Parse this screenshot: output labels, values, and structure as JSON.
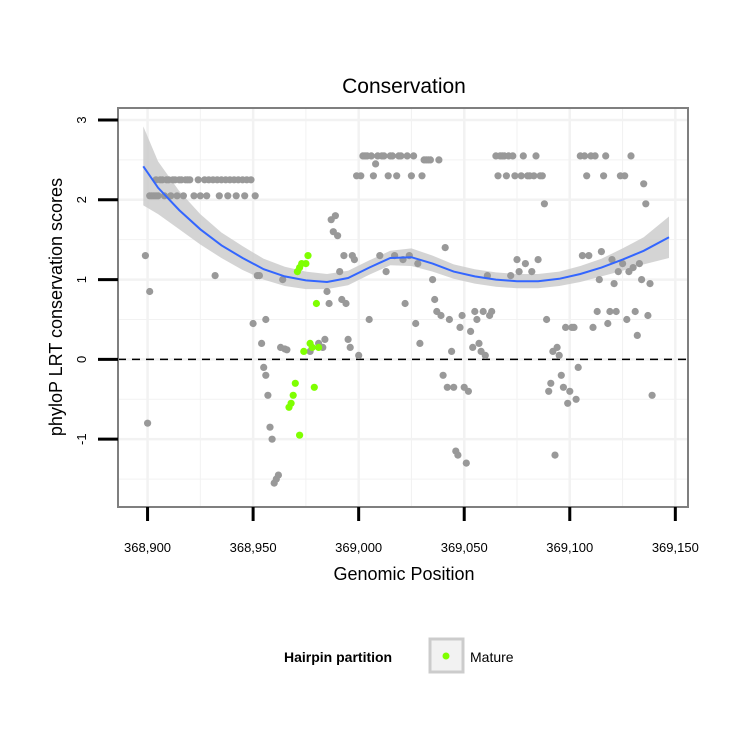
{
  "chart_data": {
    "type": "scatter",
    "title": "Conservation",
    "xlabel": "Genomic Position",
    "ylabel": "phyloP LRT conservation scores",
    "xlim": [
      368886,
      369156
    ],
    "ylim": [
      -1.85,
      3.15
    ],
    "x_ticks": [
      368900,
      368950,
      369000,
      369050,
      369100,
      369150
    ],
    "x_tick_labels": [
      "368,900",
      "368,950",
      "369,000",
      "369,050",
      "369,100",
      "369,150"
    ],
    "y_ticks": [
      -1,
      0,
      1,
      2,
      3
    ],
    "y_tick_labels": [
      "-1",
      "0",
      "1",
      "2",
      "3"
    ],
    "reference_line": {
      "y": 0,
      "style": "dashed"
    },
    "grid": true,
    "legend": {
      "title": "Hairpin partition",
      "entries": [
        {
          "label": "Mature",
          "color": "#7fff00"
        }
      ],
      "position": "bottom"
    },
    "colors": {
      "other_points": "#999999",
      "mature_points": "#7fff00",
      "smooth_line": "#3366ff",
      "confidence_band": "#cccccc",
      "panel_border": "#7f7f7f",
      "grid": "#f2f2f2"
    },
    "series": [
      {
        "name": "Other",
        "color": "#999999",
        "points": [
          [
            368899,
            1.3
          ],
          [
            368900,
            -0.8
          ],
          [
            368901,
            0.85
          ],
          [
            368901,
            2.05
          ],
          [
            368902,
            2.05
          ],
          [
            368903,
            2.05
          ],
          [
            368904,
            2.25
          ],
          [
            368904,
            2.05
          ],
          [
            368905,
            2.05
          ],
          [
            368906,
            2.25
          ],
          [
            368907,
            2.25
          ],
          [
            368908,
            2.05
          ],
          [
            368909,
            2.25
          ],
          [
            368910,
            2.25
          ],
          [
            368911,
            2.05
          ],
          [
            368912,
            2.25
          ],
          [
            368913,
            2.25
          ],
          [
            368914,
            2.05
          ],
          [
            368915,
            2.25
          ],
          [
            368916,
            2.25
          ],
          [
            368917,
            2.05
          ],
          [
            368918,
            2.25
          ],
          [
            368919,
            2.25
          ],
          [
            368920,
            2.25
          ],
          [
            368922,
            2.05
          ],
          [
            368924,
            2.25
          ],
          [
            368925,
            2.05
          ],
          [
            368927,
            2.25
          ],
          [
            368928,
            2.05
          ],
          [
            368929,
            2.25
          ],
          [
            368931,
            2.25
          ],
          [
            368932,
            1.05
          ],
          [
            368933,
            2.25
          ],
          [
            368934,
            2.05
          ],
          [
            368935,
            2.25
          ],
          [
            368937,
            2.25
          ],
          [
            368938,
            2.05
          ],
          [
            368939,
            2.25
          ],
          [
            368941,
            2.25
          ],
          [
            368942,
            2.05
          ],
          [
            368943,
            2.25
          ],
          [
            368945,
            2.25
          ],
          [
            368946,
            2.05
          ],
          [
            368947,
            2.25
          ],
          [
            368949,
            2.25
          ],
          [
            368950,
            0.45
          ],
          [
            368951,
            2.05
          ],
          [
            368952,
            1.05
          ],
          [
            368953,
            1.05
          ],
          [
            368954,
            0.2
          ],
          [
            368955,
            -0.1
          ],
          [
            368956,
            0.5
          ],
          [
            368956,
            -0.2
          ],
          [
            368957,
            -0.45
          ],
          [
            368958,
            -0.85
          ],
          [
            368959,
            -1.0
          ],
          [
            368960,
            -1.55
          ],
          [
            368961,
            -1.5
          ],
          [
            368962,
            -1.45
          ],
          [
            368963,
            0.15
          ],
          [
            368964,
            1.0
          ],
          [
            368965,
            0.13
          ],
          [
            368966,
            0.12
          ],
          [
            368977,
            0.1
          ],
          [
            368981,
            0.2
          ],
          [
            368983,
            0.15
          ],
          [
            368984,
            0.25
          ],
          [
            368985,
            0.85
          ],
          [
            368986,
            0.7
          ],
          [
            368987,
            1.75
          ],
          [
            368988,
            1.6
          ],
          [
            368989,
            1.8
          ],
          [
            368990,
            1.55
          ],
          [
            368991,
            1.1
          ],
          [
            368992,
            0.75
          ],
          [
            368993,
            1.3
          ],
          [
            368994,
            0.7
          ],
          [
            368995,
            0.25
          ],
          [
            368996,
            0.15
          ],
          [
            368997,
            1.3
          ],
          [
            368998,
            1.25
          ],
          [
            368999,
            2.3
          ],
          [
            369000,
            0.05
          ],
          [
            369001,
            2.3
          ],
          [
            369002,
            2.55
          ],
          [
            369003,
            2.55
          ],
          [
            369004,
            2.55
          ],
          [
            369005,
            0.5
          ],
          [
            369006,
            2.55
          ],
          [
            369007,
            2.3
          ],
          [
            369008,
            2.45
          ],
          [
            369009,
            2.55
          ],
          [
            369010,
            1.3
          ],
          [
            369011,
            2.55
          ],
          [
            369012,
            2.55
          ],
          [
            369013,
            1.1
          ],
          [
            369014,
            2.3
          ],
          [
            369015,
            2.55
          ],
          [
            369016,
            2.55
          ],
          [
            369017,
            1.3
          ],
          [
            369018,
            2.3
          ],
          [
            369019,
            2.55
          ],
          [
            369020,
            2.55
          ],
          [
            369021,
            1.25
          ],
          [
            369022,
            0.7
          ],
          [
            369023,
            2.55
          ],
          [
            369024,
            1.3
          ],
          [
            369025,
            2.3
          ],
          [
            369026,
            2.55
          ],
          [
            369027,
            0.45
          ],
          [
            369028,
            1.2
          ],
          [
            369029,
            0.2
          ],
          [
            369030,
            2.3
          ],
          [
            369031,
            2.5
          ],
          [
            369032,
            2.5
          ],
          [
            369033,
            2.5
          ],
          [
            369034,
            2.5
          ],
          [
            369035,
            1.0
          ],
          [
            369036,
            0.75
          ],
          [
            369037,
            0.6
          ],
          [
            369038,
            2.5
          ],
          [
            369039,
            0.55
          ],
          [
            369040,
            -0.2
          ],
          [
            369041,
            1.4
          ],
          [
            369042,
            -0.35
          ],
          [
            369043,
            0.5
          ],
          [
            369044,
            0.1
          ],
          [
            369045,
            -0.35
          ],
          [
            369046,
            -1.15
          ],
          [
            369047,
            -1.2
          ],
          [
            369048,
            0.4
          ],
          [
            369049,
            0.55
          ],
          [
            369050,
            -0.35
          ],
          [
            369051,
            -1.3
          ],
          [
            369052,
            -0.4
          ],
          [
            369053,
            0.35
          ],
          [
            369054,
            0.15
          ],
          [
            369055,
            0.6
          ],
          [
            369056,
            0.5
          ],
          [
            369057,
            0.2
          ],
          [
            369058,
            0.1
          ],
          [
            369059,
            0.6
          ],
          [
            369060,
            0.05
          ],
          [
            369061,
            1.05
          ],
          [
            369062,
            0.55
          ],
          [
            369063,
            0.6
          ],
          [
            369065,
            2.55
          ],
          [
            369066,
            2.3
          ],
          [
            369067,
            2.55
          ],
          [
            369068,
            2.55
          ],
          [
            369069,
            2.55
          ],
          [
            369070,
            2.3
          ],
          [
            369071,
            2.55
          ],
          [
            369072,
            1.05
          ],
          [
            369073,
            2.55
          ],
          [
            369074,
            2.3
          ],
          [
            369075,
            1.25
          ],
          [
            369076,
            1.1
          ],
          [
            369077,
            2.3
          ],
          [
            369078,
            2.55
          ],
          [
            369079,
            1.2
          ],
          [
            369080,
            2.3
          ],
          [
            369081,
            2.3
          ],
          [
            369082,
            1.1
          ],
          [
            369083,
            2.3
          ],
          [
            369084,
            2.55
          ],
          [
            369085,
            1.25
          ],
          [
            369086,
            2.3
          ],
          [
            369087,
            2.3
          ],
          [
            369088,
            1.95
          ],
          [
            369089,
            0.5
          ],
          [
            369090,
            -0.4
          ],
          [
            369091,
            -0.3
          ],
          [
            369092,
            0.1
          ],
          [
            369093,
            -1.2
          ],
          [
            369094,
            0.15
          ],
          [
            369095,
            0.05
          ],
          [
            369096,
            -0.2
          ],
          [
            369097,
            -0.35
          ],
          [
            369098,
            0.4
          ],
          [
            369099,
            -0.55
          ],
          [
            369100,
            -0.4
          ],
          [
            369101,
            0.4
          ],
          [
            369102,
            0.4
          ],
          [
            369103,
            -0.5
          ],
          [
            369104,
            -0.1
          ],
          [
            369105,
            2.55
          ],
          [
            369106,
            1.3
          ],
          [
            369107,
            2.55
          ],
          [
            369108,
            2.3
          ],
          [
            369109,
            1.3
          ],
          [
            369110,
            2.55
          ],
          [
            369111,
            0.4
          ],
          [
            369112,
            2.55
          ],
          [
            369113,
            0.6
          ],
          [
            369114,
            1.0
          ],
          [
            369115,
            1.35
          ],
          [
            369116,
            2.3
          ],
          [
            369117,
            2.55
          ],
          [
            369118,
            0.45
          ],
          [
            369119,
            0.6
          ],
          [
            369120,
            1.25
          ],
          [
            369121,
            0.95
          ],
          [
            369122,
            0.6
          ],
          [
            369123,
            1.1
          ],
          [
            369124,
            2.3
          ],
          [
            369125,
            1.2
          ],
          [
            369126,
            2.3
          ],
          [
            369127,
            0.5
          ],
          [
            369128,
            1.1
          ],
          [
            369129,
            2.55
          ],
          [
            369130,
            1.15
          ],
          [
            369131,
            0.6
          ],
          [
            369132,
            0.3
          ],
          [
            369133,
            1.2
          ],
          [
            369134,
            1.0
          ],
          [
            369135,
            2.2
          ],
          [
            369136,
            1.95
          ],
          [
            369137,
            0.55
          ],
          [
            369138,
            0.95
          ],
          [
            369139,
            -0.45
          ]
        ]
      },
      {
        "name": "Mature",
        "color": "#7fff00",
        "points": [
          [
            368967,
            -0.6
          ],
          [
            368968,
            -0.55
          ],
          [
            368969,
            -0.45
          ],
          [
            368970,
            -0.3
          ],
          [
            368971,
            1.1
          ],
          [
            368972,
            1.15
          ],
          [
            368972,
            -0.95
          ],
          [
            368973,
            1.2
          ],
          [
            368974,
            0.1
          ],
          [
            368975,
            1.2
          ],
          [
            368976,
            1.3
          ],
          [
            368977,
            0.2
          ],
          [
            368978,
            0.15
          ],
          [
            368979,
            -0.35
          ],
          [
            368980,
            0.7
          ],
          [
            368981,
            0.15
          ]
        ]
      }
    ],
    "smooth": {
      "name": "loess fit",
      "color": "#3366ff",
      "x": [
        368898,
        368905,
        368915,
        368925,
        368935,
        368945,
        368955,
        368965,
        368975,
        368985,
        368995,
        369005,
        369015,
        369025,
        369035,
        369045,
        369055,
        369065,
        369075,
        369085,
        369095,
        369105,
        369115,
        369125,
        369135,
        369147
      ],
      "y": [
        2.42,
        2.15,
        1.87,
        1.63,
        1.43,
        1.27,
        1.13,
        1.04,
        0.99,
        0.97,
        1.02,
        1.15,
        1.27,
        1.28,
        1.2,
        1.1,
        1.04,
        1.0,
        0.98,
        0.98,
        1.01,
        1.07,
        1.15,
        1.25,
        1.36,
        1.53
      ],
      "lower": [
        1.93,
        1.82,
        1.63,
        1.44,
        1.27,
        1.12,
        1.0,
        0.92,
        0.88,
        0.88,
        0.93,
        1.06,
        1.18,
        1.17,
        1.1,
        1.01,
        0.95,
        0.91,
        0.89,
        0.89,
        0.92,
        0.97,
        1.04,
        1.11,
        1.19,
        1.27
      ],
      "upper": [
        2.92,
        2.48,
        2.11,
        1.82,
        1.59,
        1.42,
        1.26,
        1.16,
        1.1,
        1.07,
        1.11,
        1.24,
        1.36,
        1.39,
        1.3,
        1.19,
        1.13,
        1.09,
        1.07,
        1.07,
        1.1,
        1.17,
        1.26,
        1.39,
        1.53,
        1.79
      ]
    }
  }
}
